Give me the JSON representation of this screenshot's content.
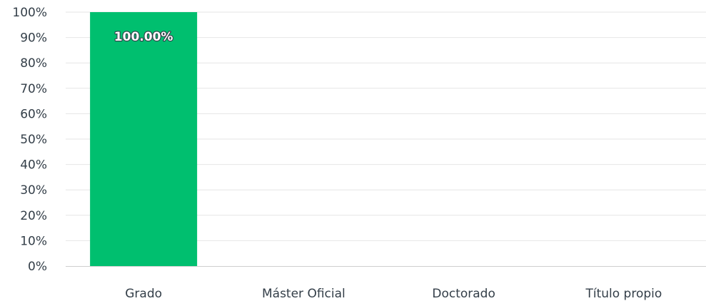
{
  "chart_data": {
    "type": "bar",
    "title": "",
    "xlabel": "",
    "ylabel": "",
    "categories": [
      "Grado",
      "Máster Oficial",
      "Doctorado",
      "Título propio"
    ],
    "values": [
      100,
      0,
      0,
      0
    ],
    "data_labels": [
      "100.00%",
      "",
      "",
      ""
    ],
    "ylim": [
      0,
      100
    ],
    "y_ticks": [
      0,
      10,
      20,
      30,
      40,
      50,
      60,
      70,
      80,
      90,
      100
    ],
    "y_tick_labels": [
      "0%",
      "10%",
      "20%",
      "30%",
      "40%",
      "50%",
      "60%",
      "70%",
      "80%",
      "90%",
      "100%"
    ],
    "grid": true,
    "legend": "none",
    "bar_color": "#00bf6f",
    "gridline_color": "#e6e6e6",
    "axis_color": "#cfcfcf",
    "text_color": "#333e48"
  }
}
